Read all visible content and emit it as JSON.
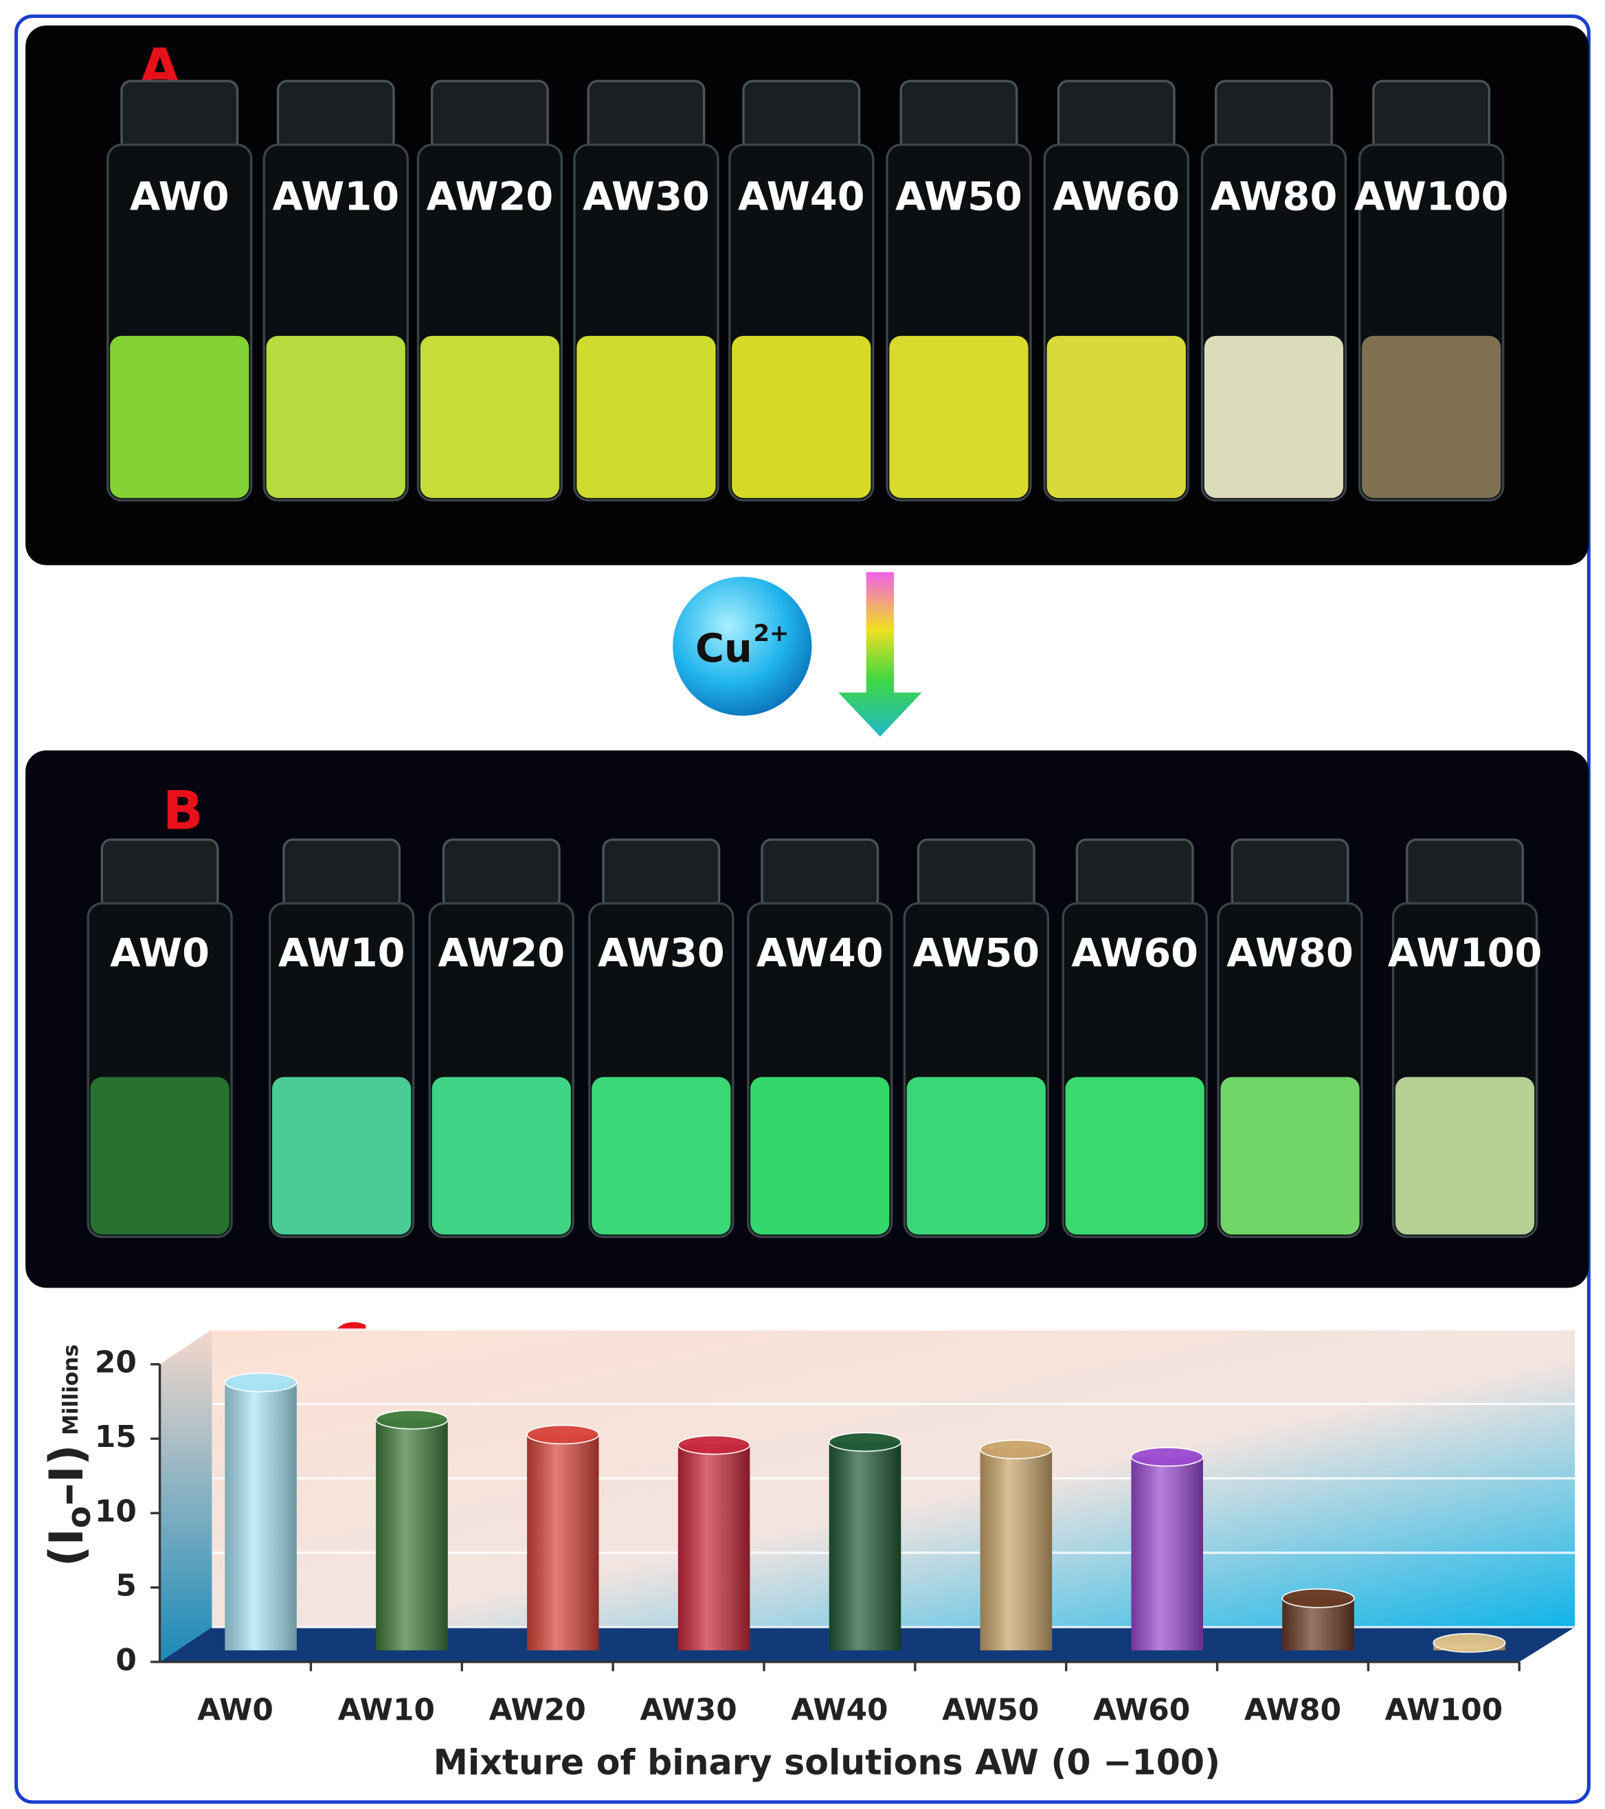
{
  "photo_a": {
    "label": "A",
    "vials": [
      "AW0",
      "AW10",
      "AW20",
      "AW30",
      "AW40",
      "AW50",
      "AW60",
      "AW80",
      "AW100"
    ]
  },
  "reagent": {
    "text": "Cu",
    "superscript": "2+"
  },
  "photo_b": {
    "label": "B",
    "vials": [
      "AW0",
      "AW10",
      "AW20",
      "AW30",
      "AW40",
      "AW50",
      "AW60",
      "AW80",
      "AW100"
    ]
  },
  "chart_data": {
    "type": "bar",
    "panel_label": "C",
    "categories": [
      "AW0",
      "AW10",
      "AW20",
      "AW30",
      "AW40",
      "AW50",
      "AW60",
      "AW80",
      "AW100"
    ],
    "values": [
      18,
      15.5,
      14.5,
      13.8,
      14,
      13.5,
      13,
      3.5,
      0.5
    ],
    "colors": [
      "#a8e4f4",
      "#3f7a3a",
      "#d8443a",
      "#c8283a",
      "#1f5a34",
      "#c8a46a",
      "#9a4ad0",
      "#6a3a22",
      "#e0c48a"
    ],
    "ylim": [
      0,
      20
    ],
    "yticks": [
      0,
      5,
      10,
      15,
      20
    ],
    "grid": true,
    "ylabel": {
      "main": "(I",
      "sub": "o",
      "rest": "–I)"
    },
    "yunit": "Millions",
    "xlabel": "Mixture of binary solutions AW (0 −100)"
  }
}
